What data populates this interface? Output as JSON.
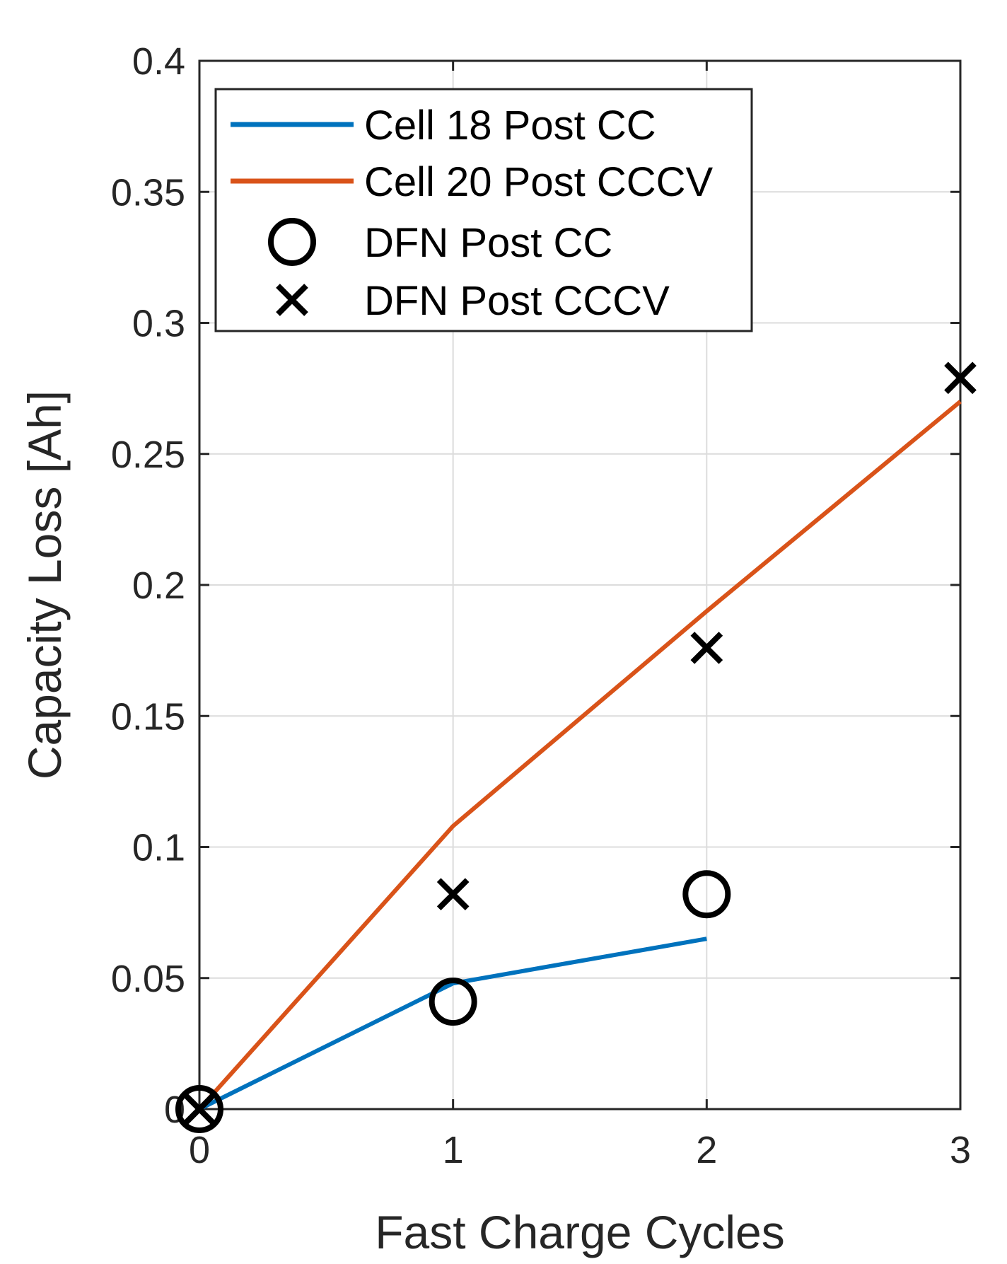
{
  "chart_data": {
    "type": "line",
    "title": "",
    "xlabel": "Fast Charge Cycles",
    "ylabel": "Capacity Loss [Ah]",
    "xlim": [
      0,
      3
    ],
    "ylim": [
      0,
      0.4
    ],
    "x_ticks": [
      0,
      1,
      2,
      3
    ],
    "x_tick_labels": [
      "0",
      "1",
      "2",
      "3"
    ],
    "y_ticks": [
      0,
      0.05,
      0.1,
      0.15,
      0.2,
      0.25,
      0.3,
      0.35,
      0.4
    ],
    "y_tick_labels": [
      "0",
      "0.05",
      "0.1",
      "0.15",
      "0.2",
      "0.25",
      "0.3",
      "0.35",
      "0.4"
    ],
    "grid": true,
    "legend_position": "top-left",
    "series": [
      {
        "name": "Cell 18 Post CC",
        "kind": "line",
        "color": "#0072BD",
        "x": [
          0,
          1,
          2
        ],
        "y": [
          0,
          0.048,
          0.065
        ]
      },
      {
        "name": "Cell 20 Post CCCV",
        "kind": "line",
        "color": "#D95319",
        "x": [
          0,
          1,
          2,
          3
        ],
        "y": [
          0,
          0.108,
          0.19,
          0.27
        ]
      },
      {
        "name": "DFN Post CC",
        "kind": "marker",
        "marker": "circle",
        "color": "#000000",
        "x": [
          0,
          1,
          2
        ],
        "y": [
          0,
          0.041,
          0.082
        ]
      },
      {
        "name": "DFN Post CCCV",
        "kind": "marker",
        "marker": "x",
        "color": "#000000",
        "x": [
          0,
          1,
          2,
          3
        ],
        "y": [
          0,
          0.082,
          0.176,
          0.279
        ]
      }
    ]
  }
}
